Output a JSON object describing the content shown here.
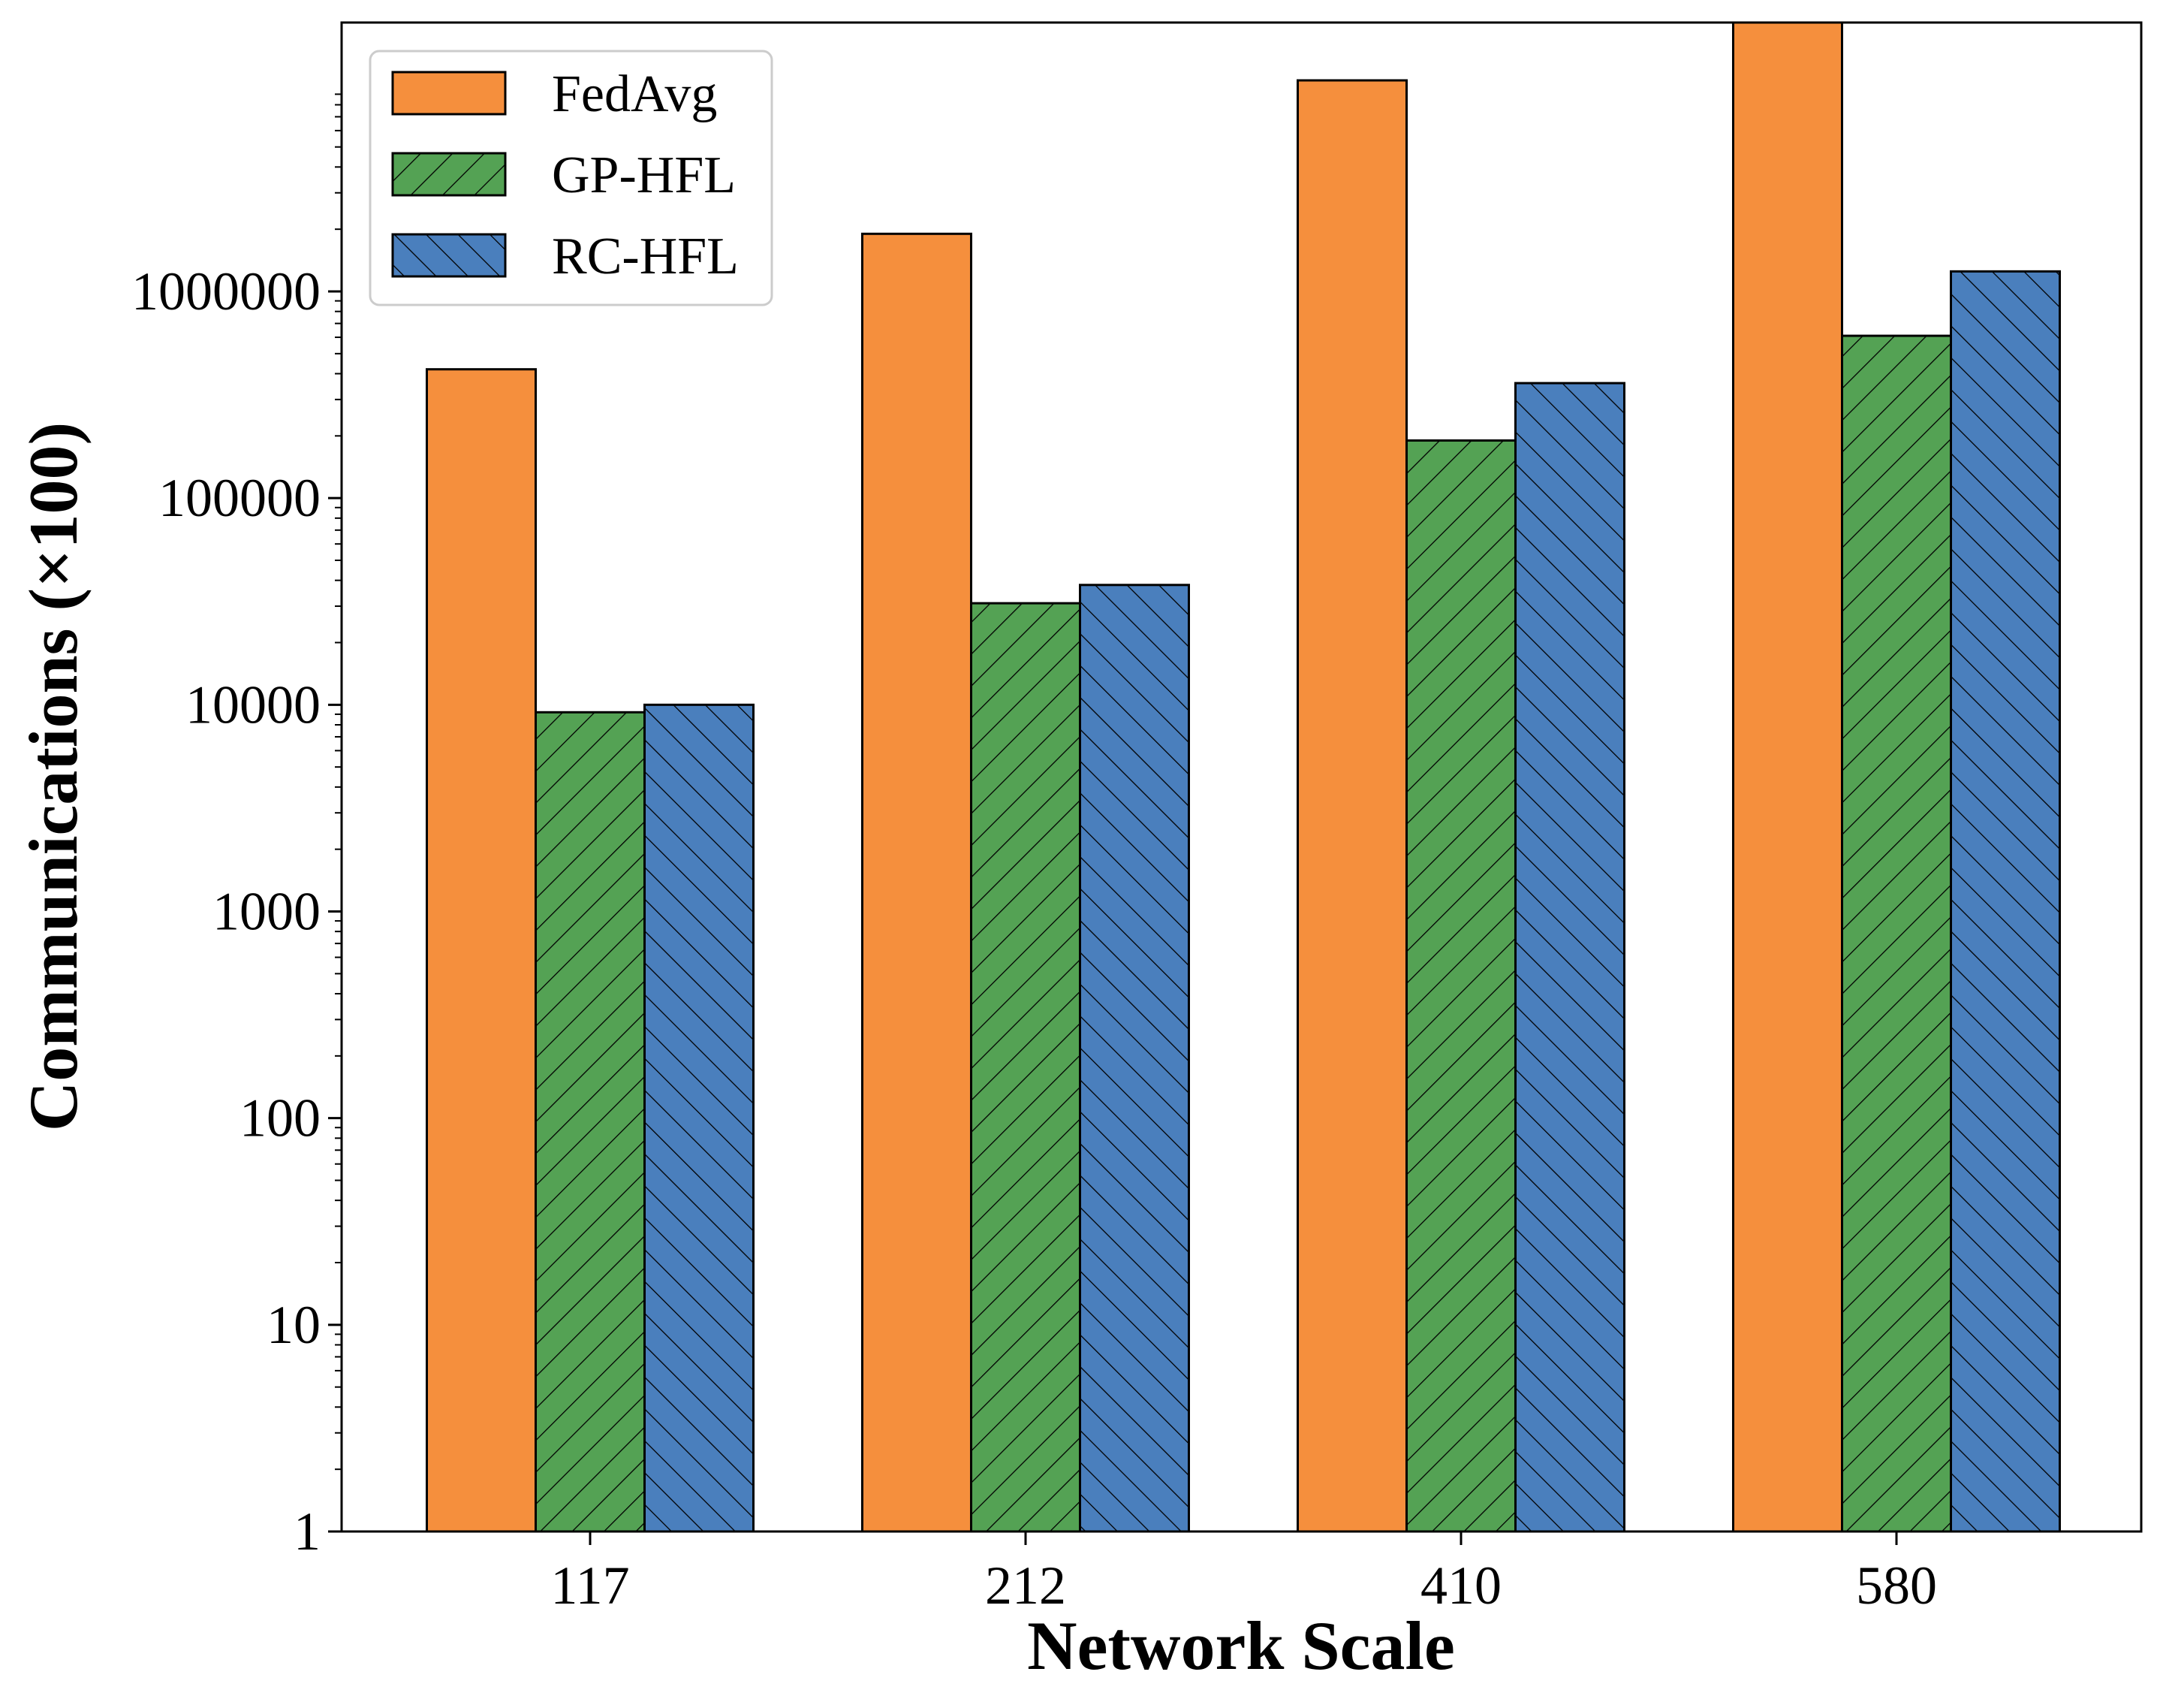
{
  "chart_data": {
    "type": "bar",
    "xlabel": "Network Scale",
    "ylabel": "Communications (×100)",
    "yscale": "log",
    "ylim": [
      1,
      20000000
    ],
    "yticks": [
      1,
      10,
      100,
      1000,
      10000,
      100000,
      1000000
    ],
    "ytick_labels": [
      "1",
      "10",
      "100",
      "1000",
      "10000",
      "100000",
      "1000000"
    ],
    "categories": [
      "117",
      "212",
      "410",
      "580"
    ],
    "series": [
      {
        "name": "FedAvg",
        "color": "#f58f3d",
        "hatch": "none",
        "values": [
          420000,
          1900000,
          10500000,
          33000000
        ]
      },
      {
        "name": "GP-HFL",
        "color": "#54a254",
        "hatch": "forward-diagonal",
        "values": [
          9200,
          31000,
          190000,
          610000
        ]
      },
      {
        "name": "RC-HFL",
        "color": "#4a7fbd",
        "hatch": "back-diagonal",
        "values": [
          10000,
          38000,
          360000,
          1250000
        ]
      }
    ],
    "legend_position": "top-left",
    "grid": false
  }
}
